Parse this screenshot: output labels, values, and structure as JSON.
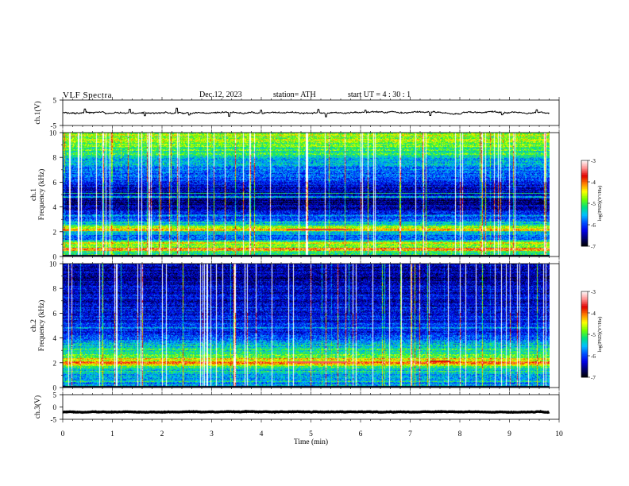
{
  "header": {
    "title": "VLF  Spectra",
    "date": "Dec.12, 2023",
    "station": "station= ATH",
    "start_ut": "start  UT  =   4  : 30 : 1"
  },
  "chart_data": [
    {
      "type": "line",
      "panel": "ch1-waveform",
      "ylabel": "ch.1(V)",
      "ylim": [
        -5,
        5
      ],
      "y_ticks": [
        "5",
        "-5"
      ],
      "xlim": [
        0,
        10
      ],
      "x_data_end": 9.8,
      "baseline": 0,
      "noise_amplitude": 0.35,
      "spikes": [
        {
          "x": 0.45,
          "y": 1.5
        },
        {
          "x": 1.35,
          "y": 1.4
        },
        {
          "x": 1.65,
          "y": -1.2
        },
        {
          "x": 2.3,
          "y": 1.8
        },
        {
          "x": 2.55,
          "y": -0.9
        },
        {
          "x": 3.35,
          "y": -1.4
        },
        {
          "x": 4.0,
          "y": 1.0
        },
        {
          "x": 5.15,
          "y": 1.3
        },
        {
          "x": 5.3,
          "y": -1.6
        },
        {
          "x": 6.1,
          "y": 1.0
        },
        {
          "x": 7.4,
          "y": -1.1
        },
        {
          "x": 8.85,
          "y": -0.8
        },
        {
          "x": 9.55,
          "y": 1.2
        }
      ]
    },
    {
      "type": "heatmap",
      "panel": "ch1-spectrogram",
      "ylabel": "ch.1\nFrequency  (kHz)",
      "ylim": [
        0,
        10
      ],
      "y_ticks": [
        "10",
        "8",
        "6",
        "4",
        "2",
        "0"
      ],
      "xlim": [
        0,
        10
      ],
      "x_data_end": 9.8,
      "colorbar": {
        "label": "log(PSD)(V²/Hz)",
        "range": [
          -7,
          -3
        ],
        "ticks": [
          "-3",
          "-4",
          "-5",
          "-6",
          "-7"
        ]
      },
      "background_profile": [
        {
          "f": 0.0,
          "v": -4.6
        },
        {
          "f": 0.4,
          "v": -5.3
        },
        {
          "f": 0.9,
          "v": -4.7
        },
        {
          "f": 1.5,
          "v": -6.0
        },
        {
          "f": 2.0,
          "v": -5.4
        },
        {
          "f": 2.3,
          "v": -4.5
        },
        {
          "f": 2.8,
          "v": -5.8
        },
        {
          "f": 3.5,
          "v": -6.2
        },
        {
          "f": 4.5,
          "v": -6.7
        },
        {
          "f": 5.5,
          "v": -6.3
        },
        {
          "f": 6.5,
          "v": -5.9
        },
        {
          "f": 7.5,
          "v": -5.6
        },
        {
          "f": 8.5,
          "v": -5.1
        },
        {
          "f": 9.3,
          "v": -4.8
        },
        {
          "f": 10.0,
          "v": -4.7
        }
      ],
      "bands": [
        {
          "f": 0.6,
          "v": -3.8,
          "width": 0.12
        },
        {
          "f": 1.1,
          "v": -4.3,
          "width": 0.1
        },
        {
          "f": 2.15,
          "v": -4.2,
          "width": 0.12
        },
        {
          "f": 2.8,
          "v": -5.2,
          "width": 0.08
        },
        {
          "f": 3.3,
          "v": -5.4,
          "width": 0.08
        },
        {
          "f": 4.8,
          "v": -5.3,
          "width": 0.06
        },
        {
          "f": 5.1,
          "v": -5.3,
          "width": 0.06
        }
      ],
      "red_segments": [
        {
          "t0": 4.5,
          "t1": 5.7,
          "f": 2.2,
          "v": -3.6
        }
      ],
      "sferic_count": 80
    },
    {
      "type": "heatmap",
      "panel": "ch2-spectrogram",
      "ylabel": "ch.2\nFrequency  (kHz)",
      "ylim": [
        0,
        10
      ],
      "y_ticks": [
        "10",
        "8",
        "6",
        "4",
        "2",
        "0"
      ],
      "xlim": [
        0,
        10
      ],
      "x_data_end": 9.8,
      "colorbar": {
        "label": "log(PSD)(V²/Hz)",
        "range": [
          -7,
          -3
        ],
        "ticks": [
          "-3",
          "-4",
          "-5",
          "-6",
          "-7"
        ]
      },
      "background_profile": [
        {
          "f": 0.0,
          "v": -5.4
        },
        {
          "f": 0.5,
          "v": -5.8
        },
        {
          "f": 1.0,
          "v": -5.6
        },
        {
          "f": 1.6,
          "v": -5.2
        },
        {
          "f": 2.0,
          "v": -4.3
        },
        {
          "f": 2.5,
          "v": -5.0
        },
        {
          "f": 3.0,
          "v": -5.2
        },
        {
          "f": 3.6,
          "v": -5.6
        },
        {
          "f": 4.5,
          "v": -6.1
        },
        {
          "f": 5.5,
          "v": -6.2
        },
        {
          "f": 6.5,
          "v": -6.3
        },
        {
          "f": 7.5,
          "v": -6.4
        },
        {
          "f": 8.5,
          "v": -6.4
        },
        {
          "f": 9.3,
          "v": -6.5
        },
        {
          "f": 10.0,
          "v": -6.5
        }
      ],
      "bands": [
        {
          "f": 0.5,
          "v": -5.0,
          "width": 0.08
        },
        {
          "f": 1.3,
          "v": -5.0,
          "width": 0.08
        },
        {
          "f": 2.0,
          "v": -3.9,
          "width": 0.12
        },
        {
          "f": 2.3,
          "v": -4.2,
          "width": 0.1
        },
        {
          "f": 3.4,
          "v": -5.0,
          "width": 0.08
        },
        {
          "f": 4.8,
          "v": -5.4,
          "width": 0.06
        }
      ],
      "red_segments": [
        {
          "t0": 4.5,
          "t1": 5.7,
          "f": 2.05,
          "v": -3.5
        },
        {
          "t0": 7.4,
          "t1": 7.8,
          "f": 2.1,
          "v": -3.7
        }
      ],
      "sferic_count": 80
    },
    {
      "type": "line",
      "panel": "ch3-waveform",
      "ylabel": "ch.3(V)",
      "ylim": [
        -5,
        5
      ],
      "y_ticks": [
        "5",
        "0",
        "-5"
      ],
      "xlim": [
        0,
        10
      ],
      "x_data_end": 9.8,
      "baseline": -2.0,
      "noise_amplitude": 0.15,
      "spikes": []
    }
  ],
  "x_axis": {
    "label": "Time  (min)",
    "ticks": [
      "0",
      "1",
      "2",
      "3",
      "4",
      "5",
      "6",
      "7",
      "8",
      "9",
      "10"
    ]
  },
  "colormap_stops": [
    "#000000",
    "#000070",
    "#0000e8",
    "#0050ff",
    "#00c0ff",
    "#00e080",
    "#70ff00",
    "#ffff00",
    "#ff8000",
    "#e00000",
    "#ff9090",
    "#ffffff"
  ]
}
